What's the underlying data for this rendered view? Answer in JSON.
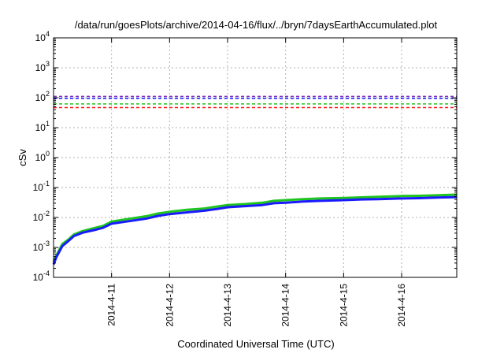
{
  "chart_data": {
    "type": "line",
    "title": "/data/run/goesPlots/archive/2014-04-16/flux/../bryn/7daysEarthAccumulated.plot",
    "xlabel": "Coordinated Universal Time (UTC)",
    "ylabel": "cSv",
    "yscale": "log",
    "ylim": [
      0.0001,
      10000
    ],
    "xlim": [
      0,
      6.95
    ],
    "grid": true,
    "ytick_values": [
      -4,
      -3,
      -2,
      -1,
      0,
      1,
      2,
      3,
      4
    ],
    "xticks": [
      {
        "pos": 1,
        "label": "2014-4-11"
      },
      {
        "pos": 2,
        "label": "2014-4-12"
      },
      {
        "pos": 3,
        "label": "2014-4-13"
      },
      {
        "pos": 4,
        "label": "2014-4-14"
      },
      {
        "pos": 5,
        "label": "2014-4-15"
      },
      {
        "pos": 6,
        "label": "2014-4-16"
      }
    ],
    "thresholds": [
      {
        "value": 110,
        "color": "#7b2fbe"
      },
      {
        "value": 95,
        "color": "#1a1aff"
      },
      {
        "value": 62,
        "color": "#1fc41f"
      },
      {
        "value": 47,
        "color": "#ff1a1a"
      }
    ],
    "series": [
      {
        "color": "#1fc41f",
        "x": [
          0,
          0.05,
          0.15,
          0.25,
          0.35,
          0.5,
          0.7,
          0.85,
          1.0,
          1.3,
          1.6,
          1.8,
          2.0,
          2.3,
          2.6,
          2.8,
          3.0,
          3.3,
          3.6,
          3.8,
          4.0,
          4.3,
          4.6,
          5.0,
          5.3,
          5.6,
          6.0,
          6.3,
          6.6,
          6.95
        ],
        "y": [
          0.00032,
          0.00055,
          0.0013,
          0.0018,
          0.0027,
          0.0035,
          0.0044,
          0.0052,
          0.0073,
          0.009,
          0.011,
          0.0135,
          0.0155,
          0.018,
          0.02,
          0.023,
          0.026,
          0.028,
          0.031,
          0.036,
          0.038,
          0.041,
          0.043,
          0.045,
          0.047,
          0.049,
          0.052,
          0.053,
          0.055,
          0.058
        ]
      },
      {
        "color": "#1a1aff",
        "x": [
          0,
          0.05,
          0.15,
          0.25,
          0.35,
          0.5,
          0.7,
          0.85,
          1.0,
          1.3,
          1.6,
          1.8,
          2.0,
          2.3,
          2.6,
          2.8,
          3.0,
          3.3,
          3.6,
          3.8,
          4.0,
          4.3,
          4.6,
          5.0,
          5.3,
          5.6,
          6.0,
          6.3,
          6.6,
          6.95
        ],
        "y": [
          0.00027,
          0.00048,
          0.0011,
          0.0016,
          0.0024,
          0.0031,
          0.0038,
          0.0045,
          0.0062,
          0.0075,
          0.0092,
          0.0113,
          0.013,
          0.0148,
          0.0168,
          0.019,
          0.022,
          0.024,
          0.026,
          0.03,
          0.031,
          0.034,
          0.036,
          0.038,
          0.04,
          0.041,
          0.043,
          0.044,
          0.046,
          0.048
        ]
      }
    ]
  }
}
